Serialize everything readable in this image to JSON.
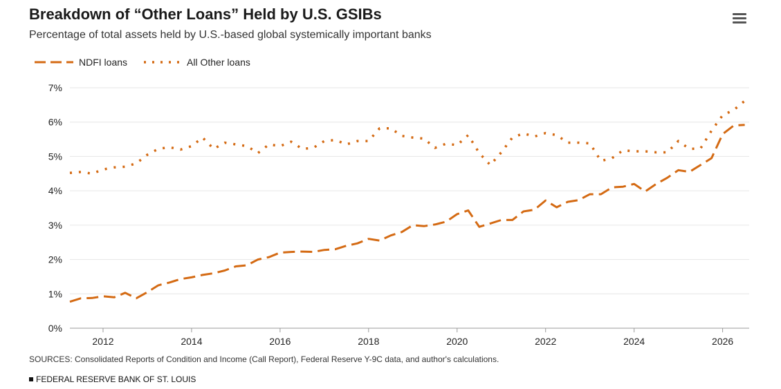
{
  "header": {
    "title": "Breakdown of “Other Loans” Held by U.S. GSIBs",
    "subtitle": "Percentage of total assets held by U.S.-based global systemically important banks",
    "menu_icon": "hamburger-menu-icon"
  },
  "legend": {
    "items": [
      {
        "label": "NDFI loans",
        "style": "dashed"
      },
      {
        "label": "All Other loans",
        "style": "dotted"
      }
    ]
  },
  "footer": {
    "sources": "SOURCES: Consolidated Reports of Condition and Income (Call Report), Federal Reserve Y-9C data, and author's calculations.",
    "org": "FEDERAL RESERVE BANK OF ST. LOUIS"
  },
  "colors": {
    "series": "#d46a13",
    "grid": "#e6e6e6",
    "axis": "#999999",
    "text": "#222222"
  },
  "chart_data": {
    "type": "line",
    "title": "Breakdown of “Other Loans” Held by U.S. GSIBs",
    "subtitle": "Percentage of total assets held by U.S.-based global systemically important banks",
    "xlabel": "",
    "ylabel": "",
    "x_tick_labels": [
      "2012",
      "2014",
      "2016",
      "2018",
      "2020",
      "2022",
      "2024",
      "2026"
    ],
    "y_tick_labels": [
      "0%",
      "1%",
      "2%",
      "3%",
      "4%",
      "5%",
      "6%",
      "7%"
    ],
    "xlim": [
      2011.25,
      2026.6
    ],
    "ylim": [
      0,
      7
    ],
    "grid": true,
    "legend_position": "top-left",
    "x": [
      2011.25,
      2011.5,
      2011.75,
      2012.0,
      2012.25,
      2012.5,
      2012.75,
      2013.0,
      2013.25,
      2013.5,
      2013.75,
      2014.0,
      2014.25,
      2014.5,
      2014.75,
      2015.0,
      2015.25,
      2015.5,
      2015.75,
      2016.0,
      2016.25,
      2016.5,
      2016.75,
      2017.0,
      2017.25,
      2017.5,
      2017.75,
      2018.0,
      2018.25,
      2018.5,
      2018.75,
      2019.0,
      2019.25,
      2019.5,
      2019.75,
      2020.0,
      2020.25,
      2020.5,
      2020.75,
      2021.0,
      2021.25,
      2021.5,
      2021.75,
      2022.0,
      2022.25,
      2022.5,
      2022.75,
      2023.0,
      2023.25,
      2023.5,
      2023.75,
      2024.0,
      2024.25,
      2024.5,
      2024.75,
      2025.0,
      2025.25,
      2025.5,
      2025.75,
      2026.0,
      2026.25,
      2026.5
    ],
    "series": [
      {
        "name": "NDFI loans",
        "values": [
          0.77,
          0.87,
          0.88,
          0.93,
          0.9,
          1.03,
          0.87,
          1.05,
          1.25,
          1.33,
          1.43,
          1.48,
          1.55,
          1.6,
          1.68,
          1.8,
          1.83,
          2.0,
          2.07,
          2.2,
          2.22,
          2.23,
          2.22,
          2.28,
          2.3,
          2.4,
          2.47,
          2.6,
          2.55,
          2.7,
          2.8,
          3.0,
          2.97,
          3.02,
          3.1,
          3.32,
          3.43,
          2.95,
          3.05,
          3.15,
          3.15,
          3.4,
          3.45,
          3.72,
          3.52,
          3.68,
          3.73,
          3.9,
          3.9,
          4.1,
          4.12,
          4.2,
          3.98,
          4.2,
          4.38,
          4.6,
          4.55,
          4.75,
          4.95,
          5.65,
          5.9,
          5.92
        ]
      },
      {
        "name": "All Other loans",
        "values": [
          4.52,
          4.55,
          4.5,
          4.62,
          4.68,
          4.7,
          4.8,
          5.05,
          5.22,
          5.27,
          5.2,
          5.3,
          5.55,
          5.22,
          5.4,
          5.35,
          5.3,
          5.1,
          5.35,
          5.3,
          5.43,
          5.22,
          5.25,
          5.45,
          5.48,
          5.35,
          5.45,
          5.45,
          5.82,
          5.82,
          5.6,
          5.55,
          5.52,
          5.25,
          5.37,
          5.33,
          5.62,
          5.1,
          4.75,
          5.12,
          5.55,
          5.67,
          5.58,
          5.68,
          5.62,
          5.4,
          5.4,
          5.38,
          4.87,
          4.95,
          5.18,
          5.15,
          5.15,
          5.12,
          5.12,
          5.45,
          5.22,
          5.23,
          5.75,
          6.2,
          6.35,
          6.62
        ]
      }
    ]
  }
}
